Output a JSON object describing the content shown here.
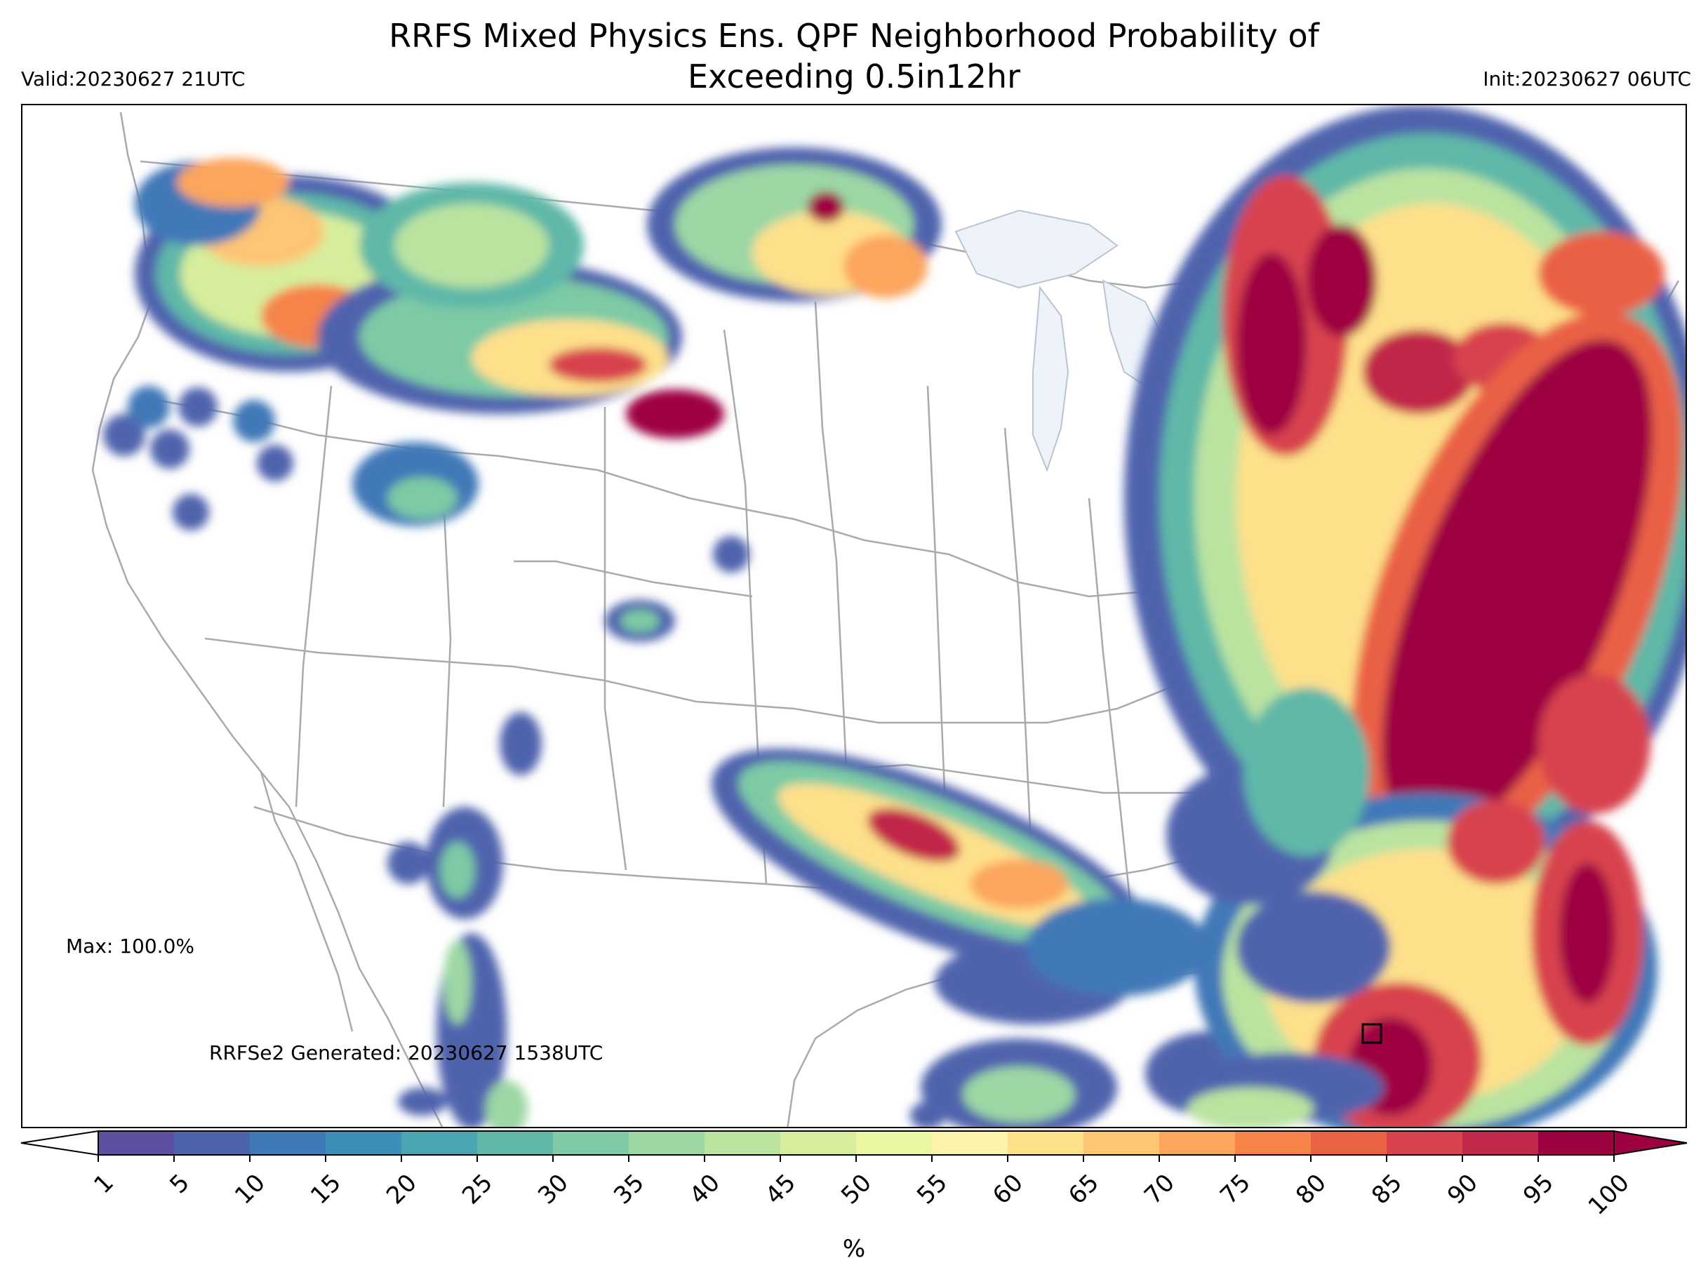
{
  "map": {
    "title_line1": "RRFS Mixed Physics Ens. QPF Neighborhood Probability of",
    "title_line2": "Exceeding 0.5in12hr",
    "valid_label": "Valid:20230627 21UTC",
    "init_label": "Init:20230627 06UTC",
    "max_label": "Max: 100.0%",
    "generated_label": "RRFSe2 Generated: 20230627 1538UTC",
    "region": "CONUS",
    "border_color": "#aaaaaa",
    "lake_color": "#eef3fa"
  },
  "colorbar": {
    "units_label": "%",
    "ticks": [
      "1",
      "5",
      "10",
      "15",
      "20",
      "25",
      "30",
      "35",
      "40",
      "45",
      "50",
      "55",
      "60",
      "65",
      "70",
      "75",
      "80",
      "85",
      "90",
      "95",
      "100"
    ],
    "colors": [
      "#5e4fa2",
      "#4f63ad",
      "#4178b8",
      "#3c8fb9",
      "#4ba4b1",
      "#5fb8a8",
      "#7dcaa5",
      "#9cd7a4",
      "#bae3a0",
      "#d6ee9b",
      "#ecf7a2",
      "#fbf3a9",
      "#fee08b",
      "#fdc574",
      "#fca55d",
      "#f6834a",
      "#ea6144",
      "#d8434e",
      "#c1284a",
      "#9e0142"
    ],
    "under_color": "#ffffff",
    "over_color": "#9e0142"
  }
}
